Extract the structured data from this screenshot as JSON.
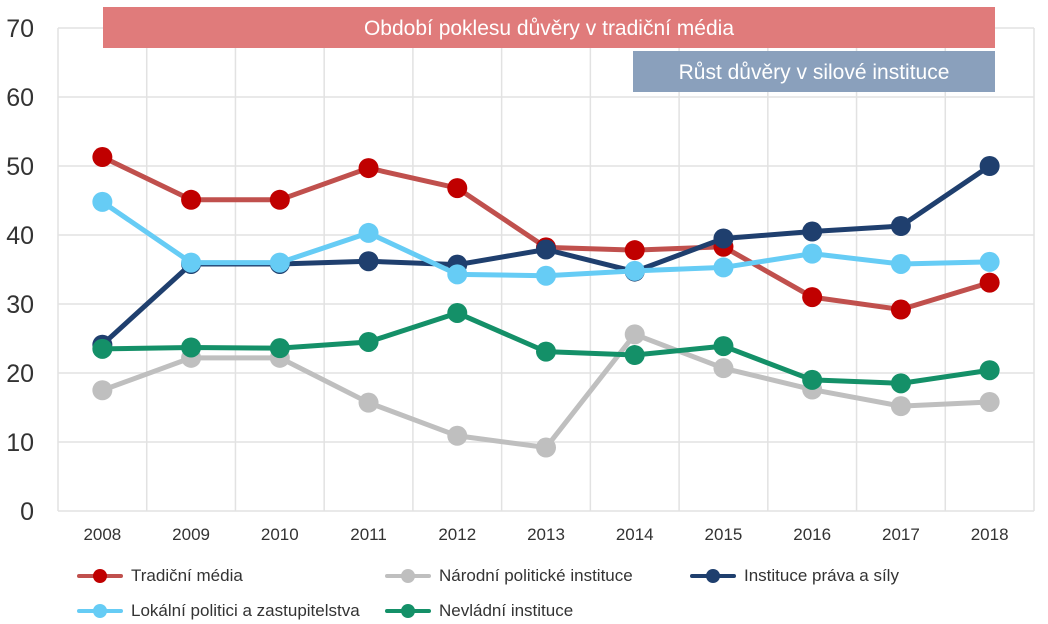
{
  "chart_data": {
    "type": "line",
    "x": [
      "2008",
      "2009",
      "2010",
      "2011",
      "2012",
      "2013",
      "2014",
      "2015",
      "2016",
      "2017",
      "2018"
    ],
    "ylim": [
      0,
      70
    ],
    "yticks": [
      "0",
      "10",
      "20",
      "30",
      "40",
      "50",
      "60",
      "70"
    ],
    "grid": true,
    "legend_position": "bottom",
    "series": [
      {
        "name": "Tradiční média",
        "color": "#c0504d",
        "marker_color": "#c00000",
        "values": [
          51.3,
          45.1,
          45.1,
          49.7,
          46.8,
          38.2,
          37.8,
          38.3,
          31.0,
          29.2,
          33.1
        ]
      },
      {
        "name": "Národní politické instituce",
        "color": "#bfbfbf",
        "marker_color": "#bfbfbf",
        "values": [
          17.5,
          22.2,
          22.2,
          15.7,
          10.9,
          9.2,
          25.6,
          20.7,
          17.6,
          15.2,
          15.8
        ]
      },
      {
        "name": "Instituce práva a síly",
        "color": "#1f3f6e",
        "marker_color": "#1f3f6e",
        "values": [
          24.1,
          35.8,
          35.8,
          36.2,
          35.7,
          37.9,
          34.7,
          39.5,
          40.5,
          41.3,
          50.0
        ]
      },
      {
        "name": "Lokální politici a zastupitelstva",
        "color": "#66ccf5",
        "marker_color": "#66ccf5",
        "values": [
          44.8,
          36.0,
          36.0,
          40.3,
          34.3,
          34.1,
          34.8,
          35.3,
          37.3,
          35.8,
          36.1
        ]
      },
      {
        "name": "Nevládní instituce",
        "color": "#149068",
        "marker_color": "#149068",
        "values": [
          23.5,
          23.7,
          23.6,
          24.5,
          28.7,
          23.1,
          22.6,
          23.9,
          19.0,
          18.5,
          20.4
        ]
      }
    ],
    "annotations": [
      {
        "text": "Období poklesu důvěry v tradiční média",
        "x_from": "2008",
        "x_to": "2018",
        "color": "#e07b7b"
      },
      {
        "text": "Růst důvěry v silové instituce",
        "x_from": "2014",
        "x_to": "2018",
        "color": "#8aa0bc"
      }
    ]
  }
}
